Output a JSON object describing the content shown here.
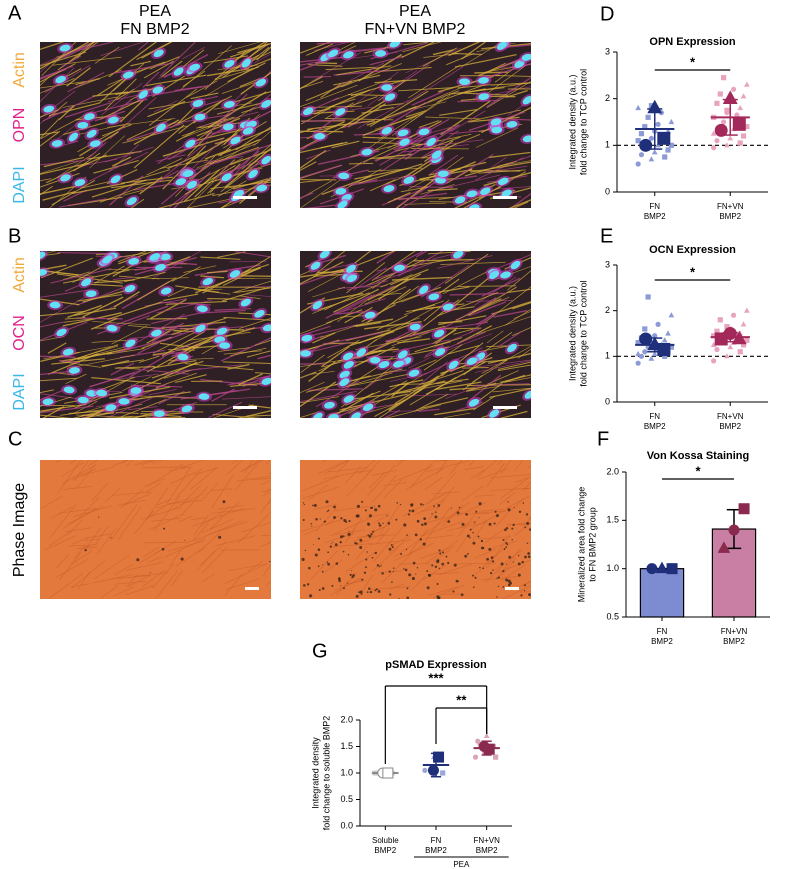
{
  "figure": {
    "columns": [
      {
        "material": "PEA",
        "coating": "FN BMP2"
      },
      {
        "material": "PEA",
        "coating": "FN+VN BMP2"
      }
    ],
    "panels": [
      {
        "label": "A",
        "stains": [
          "Actin",
          "OPN",
          "DAPI"
        ]
      },
      {
        "label": "B",
        "stains": [
          "Actin",
          "OCN",
          "DAPI"
        ]
      },
      {
        "label": "C",
        "channel": "Phase Image"
      }
    ]
  },
  "chart_data": [
    {
      "type": "dotplot",
      "panel": "D",
      "title": "OPN Expression",
      "y_label": [
        "Integrated density (a.u.)",
        "fold change to TCP control"
      ],
      "categories": [
        [
          "FN",
          "BMP2"
        ],
        [
          "FN+VN",
          "BMP2"
        ]
      ],
      "ylim": [
        0,
        3
      ],
      "yticks": [
        0,
        1,
        2,
        3
      ],
      "reference_line": 1,
      "groups": [
        {
          "color": "#1f2f7a",
          "point_color": "#8c9bd6",
          "mean": 1.35,
          "sd": 0.43,
          "points": [
            0.6,
            0.7,
            0.75,
            0.8,
            0.85,
            0.9,
            0.95,
            1.0,
            1.0,
            1.05,
            1.1,
            1.1,
            1.15,
            1.2,
            1.25,
            1.3,
            1.3,
            1.4,
            1.45,
            1.5,
            1.6,
            1.7,
            1.8,
            1.85
          ],
          "replicates": [
            {
              "shape": "circle",
              "value": 1.0
            },
            {
              "shape": "triangle",
              "value": 1.8
            },
            {
              "shape": "square",
              "value": 1.15
            }
          ]
        },
        {
          "color": "#a3295a",
          "point_color": "#e8a3bf",
          "mean": 1.6,
          "sd": 0.38,
          "points": [
            0.95,
            1.0,
            1.05,
            1.1,
            1.15,
            1.2,
            1.3,
            1.35,
            1.4,
            1.5,
            1.55,
            1.6,
            1.7,
            1.8,
            1.9,
            2.0,
            2.05,
            2.1,
            2.2,
            2.3,
            2.45,
            1.65,
            1.25,
            1.75
          ],
          "replicates": [
            {
              "shape": "circle",
              "value": 1.32
            },
            {
              "shape": "triangle",
              "value": 2.0
            },
            {
              "shape": "square",
              "value": 1.45
            }
          ]
        }
      ],
      "significance": [
        {
          "label": "*"
        }
      ]
    },
    {
      "type": "dotplot",
      "panel": "E",
      "title": "OCN Expression",
      "y_label": [
        "Integrated density (a.u.)",
        "fold change to TCP control"
      ],
      "categories": [
        [
          "FN",
          "BMP2"
        ],
        [
          "FN+VN",
          "BMP2"
        ]
      ],
      "ylim": [
        0,
        3
      ],
      "yticks": [
        0,
        1,
        2,
        3
      ],
      "reference_line": 1,
      "groups": [
        {
          "color": "#1f2f7a",
          "point_color": "#8c9bd6",
          "mean": 1.25,
          "sd": 0.15,
          "points": [
            0.85,
            0.95,
            1.0,
            1.0,
            1.05,
            1.1,
            1.1,
            1.15,
            1.2,
            1.2,
            1.25,
            1.3,
            1.3,
            1.35,
            1.4,
            1.45,
            1.5,
            1.6,
            1.7,
            1.9,
            2.3,
            1.15,
            1.05,
            1.25
          ],
          "replicates": [
            {
              "shape": "circle",
              "value": 1.38
            },
            {
              "shape": "triangle",
              "value": 1.25
            },
            {
              "shape": "square",
              "value": 1.15
            }
          ]
        },
        {
          "color": "#a3295a",
          "point_color": "#e8a3bf",
          "mean": 1.42,
          "sd": 0.1,
          "points": [
            0.9,
            1.0,
            1.1,
            1.15,
            1.2,
            1.25,
            1.3,
            1.3,
            1.35,
            1.4,
            1.4,
            1.45,
            1.5,
            1.5,
            1.55,
            1.6,
            1.7,
            1.8,
            1.9,
            2.0,
            1.35,
            1.45,
            1.25,
            1.65
          ],
          "replicates": [
            {
              "shape": "square",
              "value": 1.38
            },
            {
              "shape": "circle",
              "value": 1.5
            },
            {
              "shape": "triangle",
              "value": 1.38
            }
          ]
        }
      ],
      "significance": [
        {
          "label": "*"
        }
      ]
    },
    {
      "type": "bar",
      "panel": "F",
      "title": "Von Kossa Staining",
      "y_label": [
        "Mineralized area fold change",
        "to FN BMP2 group"
      ],
      "categories": [
        [
          "FN",
          "BMP2"
        ],
        [
          "FN+VN",
          "BMP2"
        ]
      ],
      "ylim": [
        0.5,
        2.0
      ],
      "yticks": [
        {
          "value": 0.5,
          "label": "0.5"
        },
        {
          "value": 1.0,
          "label": "1.0"
        },
        {
          "value": 1.5,
          "label": "1.5"
        },
        {
          "value": 2.0,
          "label": "2.0"
        }
      ],
      "groups": [
        {
          "color": "#1f2f7a",
          "bar_color": "#7d8bd1",
          "mean": 1.0,
          "sd": 0.0,
          "points": [],
          "replicates": [
            {
              "shape": "circle",
              "value": 1.0
            },
            {
              "shape": "triangle",
              "value": 1.0
            },
            {
              "shape": "square",
              "value": 1.0
            }
          ]
        },
        {
          "color": "#8a2a4f",
          "bar_color": "#c97fa3",
          "mean": 1.41,
          "sd": 0.2,
          "points": [],
          "replicates": [
            {
              "shape": "triangle",
              "value": 1.21
            },
            {
              "shape": "circle",
              "value": 1.4
            },
            {
              "shape": "square",
              "value": 1.62
            }
          ]
        }
      ],
      "significance": [
        {
          "label": "*"
        }
      ]
    },
    {
      "type": "dotplot",
      "panel": "G",
      "title": "pSMAD Expression",
      "y_label": [
        "Integrated density",
        "fold change to soluble BMP2"
      ],
      "categories": [
        [
          "Soluble",
          "BMP2"
        ],
        [
          "FN",
          "BMP2"
        ],
        [
          "FN+VN",
          "BMP2"
        ]
      ],
      "group_label": "PEA",
      "ylim": [
        0,
        2.0
      ],
      "yticks": [
        {
          "value": 0,
          "label": "0.0"
        },
        {
          "value": 0.5,
          "label": "0.5"
        },
        {
          "value": 1.0,
          "label": "1.0"
        },
        {
          "value": 1.5,
          "label": "1.5"
        },
        {
          "value": 2.0,
          "label": "2.0"
        }
      ],
      "groups": [
        {
          "color": "#8a8a8a",
          "fill": "#ffffff",
          "point_color": "#c8c8c8",
          "mean": 1.0,
          "sd": 0.02,
          "points": [
            1.0,
            1.0,
            1.0,
            1.0
          ],
          "replicates": [
            {
              "shape": "circle",
              "value": 1.0
            },
            {
              "shape": "square",
              "value": 1.0
            }
          ]
        },
        {
          "color": "#1f2f7a",
          "point_color": "#9aa6d8",
          "mean": 1.15,
          "sd": 0.22,
          "points": [
            1.05,
            1.3,
            1.0
          ],
          "replicates": [
            {
              "shape": "circle",
              "value": 1.05
            },
            {
              "shape": "square",
              "value": 1.3
            }
          ]
        },
        {
          "color": "#8a2a4f",
          "point_color": "#d9a3b8",
          "mean": 1.47,
          "sd": 0.13,
          "points": [
            1.3,
            1.4,
            1.5,
            1.6,
            1.7,
            1.3,
            1.55
          ],
          "replicates": [
            {
              "shape": "circle",
              "value": 1.5
            },
            {
              "shape": "square",
              "value": 1.45
            }
          ]
        }
      ],
      "significance": [
        {
          "label": "***"
        },
        {
          "label": "**"
        }
      ]
    }
  ]
}
